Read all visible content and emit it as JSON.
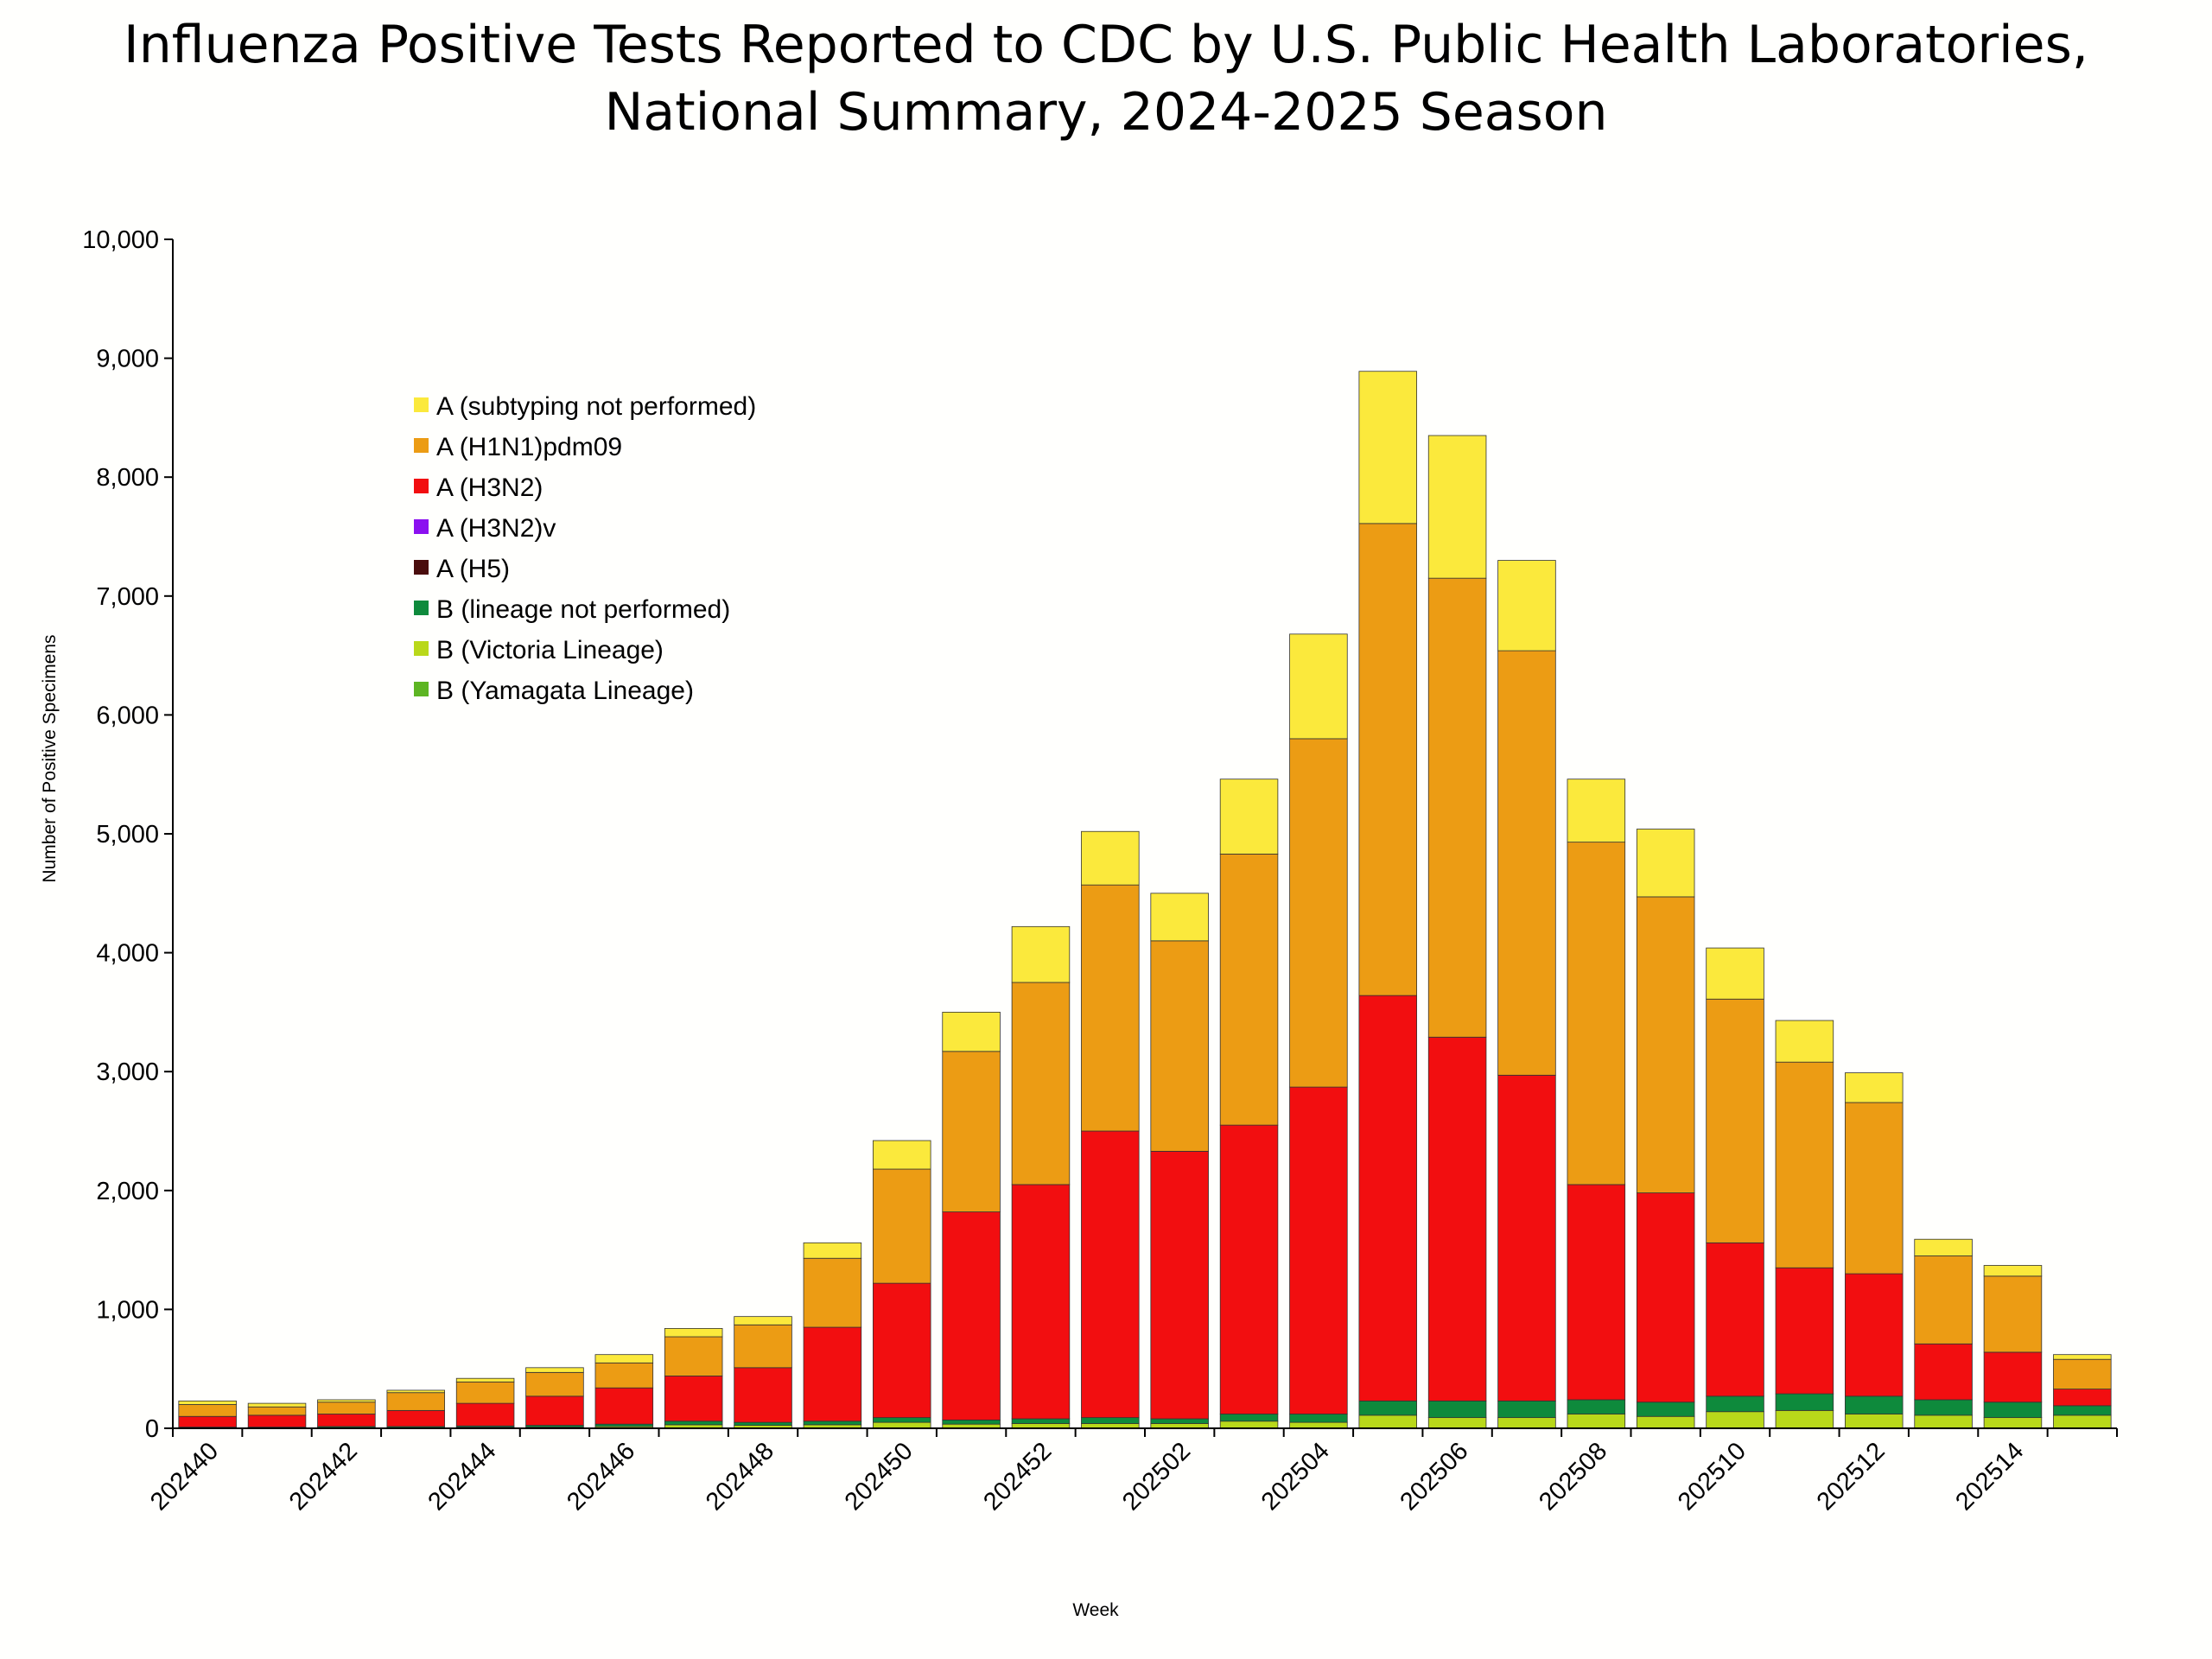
{
  "chart_data": {
    "type": "bar",
    "stacked": true,
    "title": "Influenza Positive Tests Reported to CDC by U.S. Public Health Laboratories,",
    "subtitle": "National Summary, 2024-2025 Season",
    "xlabel": "Week",
    "ylabel": "Number of Positive Specimens",
    "ylim": [
      0,
      10000
    ],
    "yticks": [
      0,
      1000,
      2000,
      3000,
      4000,
      5000,
      6000,
      7000,
      8000,
      9000,
      10000
    ],
    "ytick_labels": [
      "0",
      "1,000",
      "2,000",
      "3,000",
      "4,000",
      "5,000",
      "6,000",
      "7,000",
      "8,000",
      "9,000",
      "10,000"
    ],
    "grid": false,
    "legend_placement": "upper-left inside",
    "categories": [
      "202440",
      "202441",
      "202442",
      "202443",
      "202444",
      "202445",
      "202446",
      "202447",
      "202448",
      "202449",
      "202450",
      "202451",
      "202452",
      "202501",
      "202502",
      "202503",
      "202504",
      "202505",
      "202506",
      "202507",
      "202508",
      "202509",
      "202510",
      "202511",
      "202512",
      "202513",
      "202514",
      "202515"
    ],
    "xtick_labels": [
      "202440",
      "202442",
      "202444",
      "202446",
      "202448",
      "202450",
      "202452",
      "202502",
      "202504",
      "202506",
      "202508",
      "202510",
      "202512",
      "202514"
    ],
    "series": [
      {
        "name": "B (Yamagata Lineage)",
        "color": "#5DB523",
        "values": [
          0,
          0,
          0,
          0,
          0,
          0,
          0,
          0,
          0,
          0,
          0,
          0,
          0,
          0,
          0,
          0,
          0,
          0,
          0,
          0,
          0,
          0,
          0,
          0,
          0,
          0,
          0,
          0
        ]
      },
      {
        "name": "B (Victoria Lineage)",
        "color": "#B9D81A",
        "values": [
          5,
          5,
          5,
          5,
          10,
          10,
          15,
          30,
          25,
          30,
          50,
          35,
          40,
          40,
          40,
          60,
          50,
          110,
          90,
          90,
          120,
          100,
          140,
          150,
          120,
          110,
          90,
          110
        ]
      },
      {
        "name": "B (lineage not performed)",
        "color": "#0E8A3C",
        "values": [
          5,
          5,
          10,
          10,
          10,
          15,
          20,
          30,
          25,
          30,
          40,
          35,
          40,
          50,
          40,
          60,
          70,
          120,
          140,
          140,
          120,
          120,
          130,
          140,
          150,
          130,
          130,
          80
        ]
      },
      {
        "name": "A (H5)",
        "color": "#4A0D0D",
        "values": [
          0,
          0,
          0,
          0,
          0,
          0,
          0,
          0,
          0,
          0,
          0,
          0,
          0,
          0,
          0,
          0,
          0,
          0,
          0,
          0,
          0,
          0,
          0,
          0,
          0,
          0,
          0,
          0
        ]
      },
      {
        "name": "A (H3N2)v",
        "color": "#8B10F0",
        "values": [
          0,
          0,
          0,
          0,
          0,
          0,
          0,
          0,
          0,
          0,
          0,
          0,
          0,
          0,
          0,
          0,
          0,
          0,
          0,
          0,
          0,
          0,
          0,
          0,
          0,
          0,
          0,
          0
        ]
      },
      {
        "name": "A (H3N2)",
        "color": "#F20E10",
        "values": [
          90,
          100,
          105,
          135,
          190,
          245,
          305,
          380,
          460,
          790,
          1130,
          1750,
          1970,
          2410,
          2250,
          2430,
          2750,
          3410,
          3060,
          2740,
          1810,
          1760,
          1290,
          1060,
          1030,
          470,
          420,
          140
        ]
      },
      {
        "name": "A (H1N1)pdm09",
        "color": "#EC9C14",
        "values": [
          100,
          70,
          100,
          150,
          180,
          200,
          210,
          330,
          360,
          580,
          960,
          1350,
          1700,
          2070,
          1770,
          2280,
          2930,
          3970,
          3860,
          3570,
          2880,
          2490,
          2050,
          1730,
          1440,
          740,
          640,
          250
        ]
      },
      {
        "name": "A (subtyping not performed)",
        "color": "#FBE93C",
        "values": [
          30,
          30,
          20,
          20,
          30,
          40,
          70,
          70,
          70,
          130,
          240,
          330,
          470,
          450,
          400,
          630,
          880,
          1280,
          1200,
          760,
          530,
          570,
          430,
          350,
          250,
          140,
          90,
          40
        ]
      }
    ],
    "legend_order": [
      "A (subtyping not performed)",
      "A (H1N1)pdm09",
      "A (H3N2)",
      "A (H3N2)v",
      "A (H5)",
      "B (lineage not performed)",
      "B (Victoria Lineage)",
      "B (Yamagata Lineage)"
    ]
  }
}
